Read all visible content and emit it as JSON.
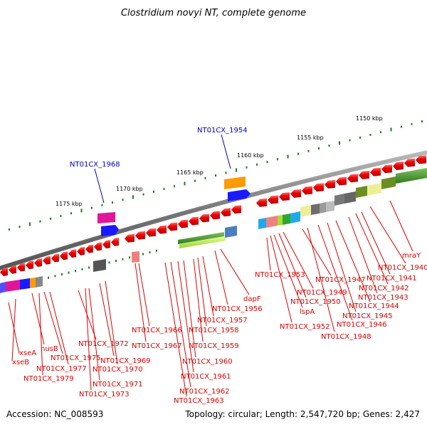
{
  "title": "Clostridium novyi NT, complete genome",
  "footer": {
    "accession": "Accession: NC_008593",
    "summary": "Topology: circular; Length: 2,547,720 bp; Genes: 2,427"
  },
  "colors": {
    "gene_red": "#ee0000",
    "label_red": "#dd0000",
    "label_blue": "#0000cc",
    "backbone": "#7a7a7a",
    "tick": "#1f7a1f"
  },
  "scale_labels": [
    "1150 kbp",
    "1155 kbp",
    "1160 kbp",
    "1165 kbp",
    "1170 kbp",
    "1175 kbp"
  ],
  "top_labels": [
    "NT01CX_1954",
    "NT01CX_1968"
  ],
  "gene_labels": [
    "xseA",
    "xseB",
    "nusB",
    "NT01CX_1975",
    "NT01CX_1977",
    "NT01CX_1979",
    "NT01CX_1972",
    "NT01CX_1969",
    "NT01CX_1970",
    "NT01CX_1971",
    "NT01CX_1973",
    "NT01CX_1966",
    "NT01CX_1967",
    "NT01CX_1957",
    "NT01CX_1958",
    "NT01CX_1959",
    "NT01CX_1960",
    "NT01CX_1961",
    "NT01CX_1962",
    "NT01CX_1963",
    "dapF",
    "NT01CX_1956",
    "NT01CX_1953",
    "NT01CX_1949",
    "NT01CX_1950",
    "lspA",
    "NT01CX_1952",
    "NT01CX_1947",
    "NT01CX_1948",
    "NT01CX_1946",
    "NT01CX_1945",
    "NT01CX_1944",
    "NT01CX_1943",
    "NT01CX_1942",
    "NT01CX_1941",
    "NT01CX_1940",
    "mraY"
  ]
}
